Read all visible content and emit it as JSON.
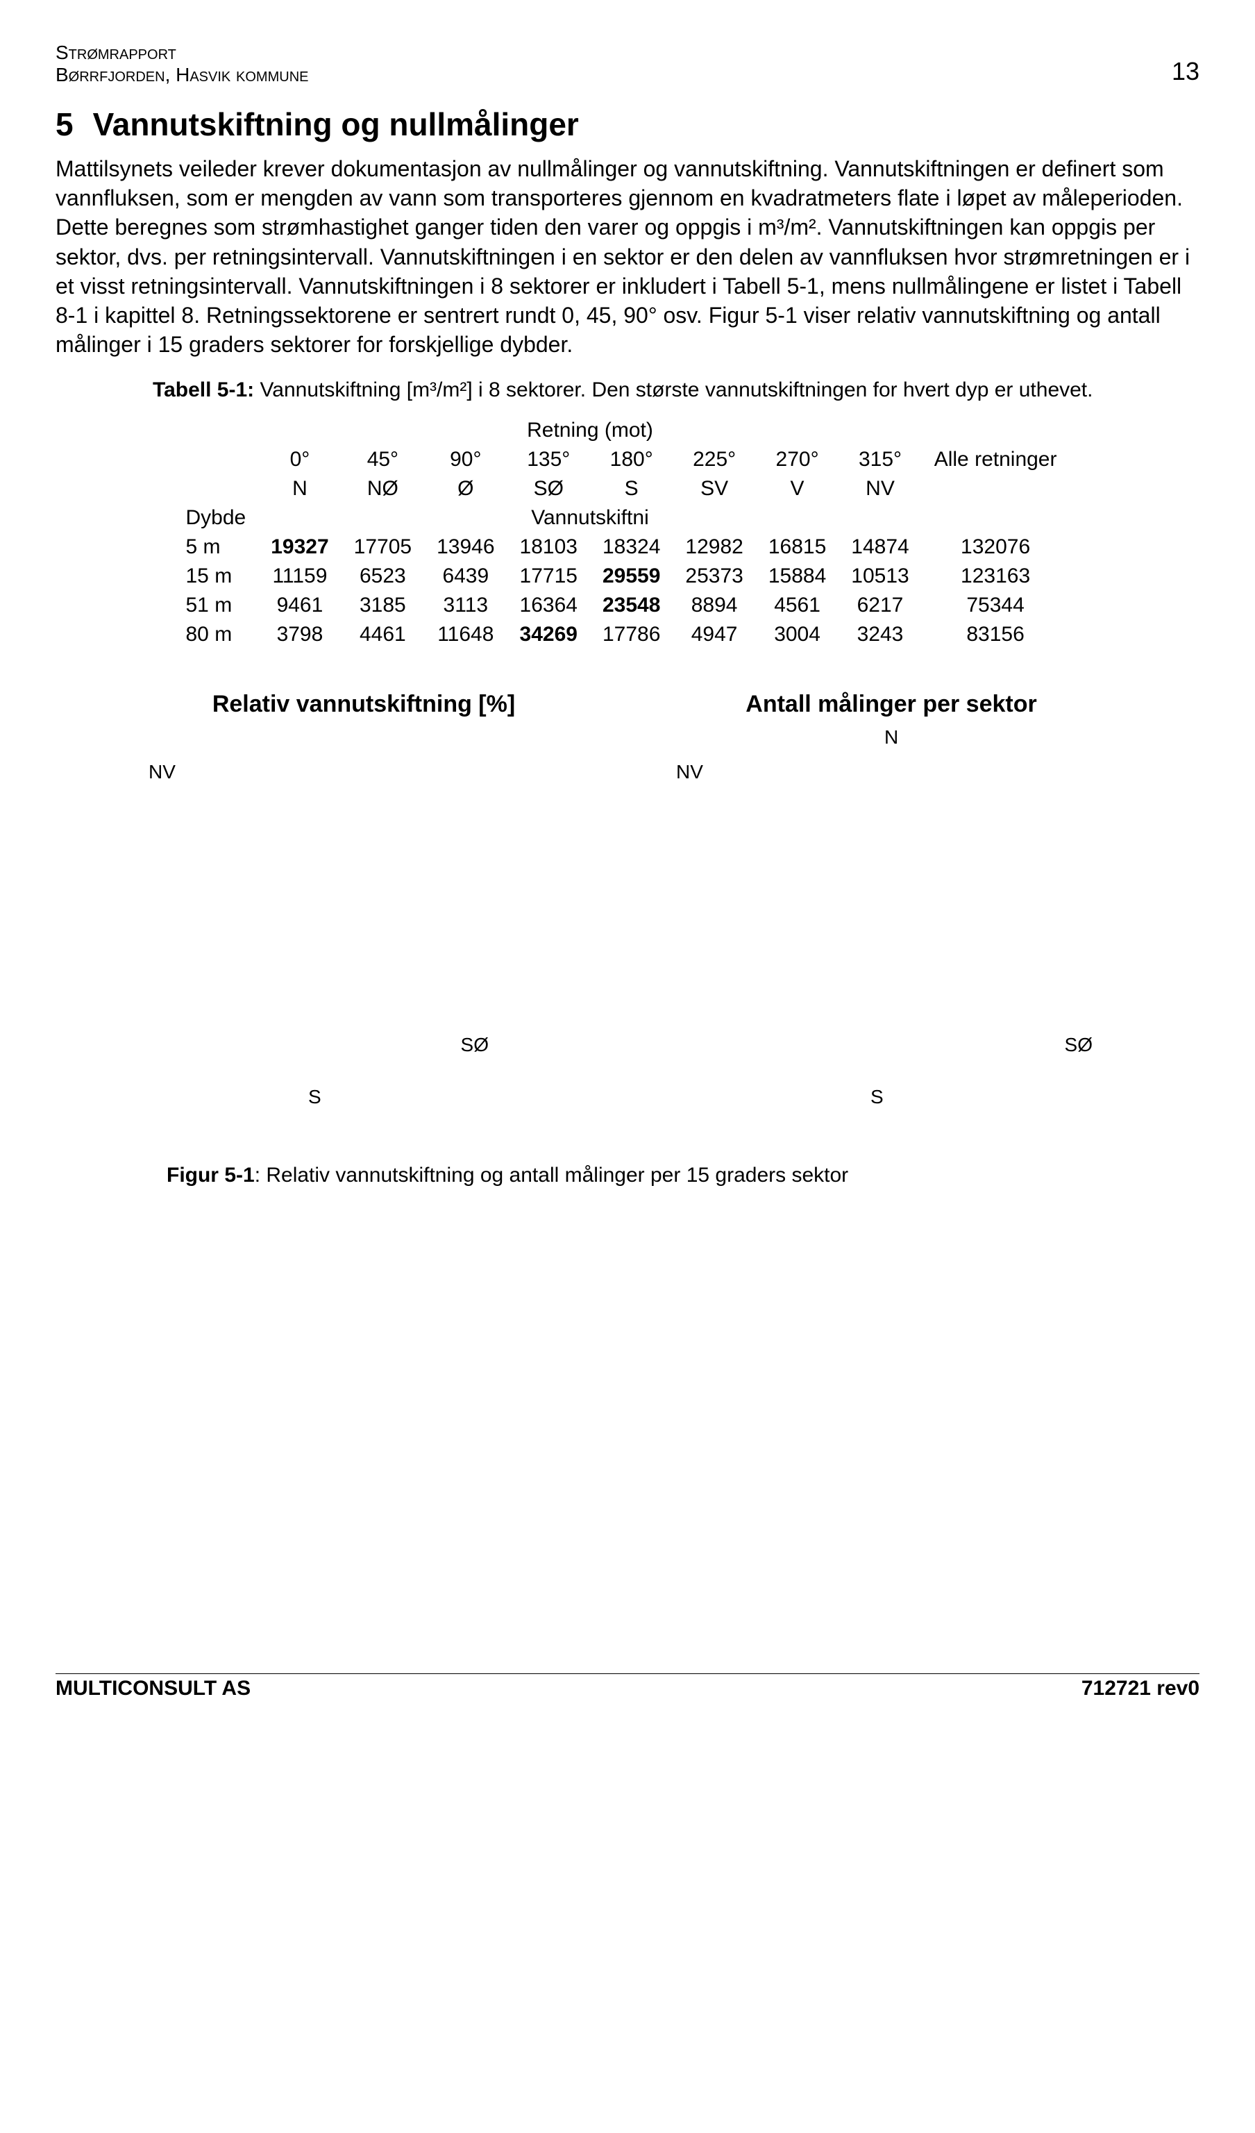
{
  "header": {
    "line1": "Strømrapport",
    "line2": "Børrfjorden, Hasvik kommune",
    "page_number": "13"
  },
  "section": {
    "number": "5",
    "title": "Vannutskiftning og nullmålinger",
    "paragraph": "Mattilsynets veileder krever dokumentasjon av nullmålinger og vannutskiftning. Vannutskiftningen er definert som vannfluksen, som er mengden av vann som transporteres gjennom en kvadratmeters flate i løpet av måleperioden. Dette beregnes som strømhastighet ganger tiden den varer og oppgis i m³/m². Vannutskiftningen kan oppgis per sektor, dvs. per retningsintervall. Vannutskiftningen i en sektor er den delen av vannfluksen hvor strømretningen er i et visst retningsintervall. Vannutskiftningen i 8 sektorer er inkludert i Tabell 5-1, mens nullmålingene er listet i Tabell 8-1 i kapittel 8.  Retningssektorene er sentrert rundt 0, 45, 90° osv. Figur 5-1 viser relativ vannutskiftning og antall målinger i 15 graders sektorer for forskjellige dybder."
  },
  "table": {
    "caption_prefix": "Tabell 5-1:",
    "caption_text": " Vannutskiftning [m³/m²] i 8 sektorer. Den største vannutskiftningen for hvert dyp er uthevet.",
    "retning_label": "Retning (mot)",
    "degree_headers": [
      "0°",
      "45°",
      "90°",
      "135°",
      "180°",
      "225°",
      "270°",
      "315°"
    ],
    "alle_label": "Alle retninger",
    "dir_headers": [
      "N",
      "NØ",
      "Ø",
      "SØ",
      "S",
      "SV",
      "V",
      "NV"
    ],
    "dybde_label": "Dybde",
    "vannutskiftni_label": "Vannutskiftni",
    "rows": [
      {
        "depth": "5 m",
        "vals": [
          "19327",
          "17705",
          "13946",
          "18103",
          "18324",
          "12982",
          "16815",
          "14874"
        ],
        "alle": "132076",
        "bold_idx": 0
      },
      {
        "depth": "15 m",
        "vals": [
          "11159",
          "6523",
          "6439",
          "17715",
          "29559",
          "25373",
          "15884",
          "10513"
        ],
        "alle": "123163",
        "bold_idx": 4
      },
      {
        "depth": "51 m",
        "vals": [
          "9461",
          "3185",
          "3113",
          "16364",
          "23548",
          "8894",
          "4561",
          "6217"
        ],
        "alle": "75344",
        "bold_idx": 4
      },
      {
        "depth": "80 m",
        "vals": [
          "3798",
          "4461",
          "11648",
          "34269",
          "17786",
          "4947",
          "3004",
          "3243"
        ],
        "alle": "83156",
        "bold_idx": 3
      }
    ]
  },
  "charts": {
    "left": {
      "title": "Relativ vannutskiftning [%]",
      "labels": {
        "nv": "NV",
        "s": "S",
        "so": "SØ"
      }
    },
    "right": {
      "title": "Antall målinger per sektor",
      "labels": {
        "n": "N",
        "nv": "NV",
        "s": "S",
        "so": "SØ"
      }
    }
  },
  "figure_caption": {
    "prefix": "Figur 5-1",
    "text": ": Relativ vannutskiftning og antall målinger per 15 graders sektor"
  },
  "footer": {
    "left": "MULTICONSULT AS",
    "right": "712721 rev0"
  }
}
